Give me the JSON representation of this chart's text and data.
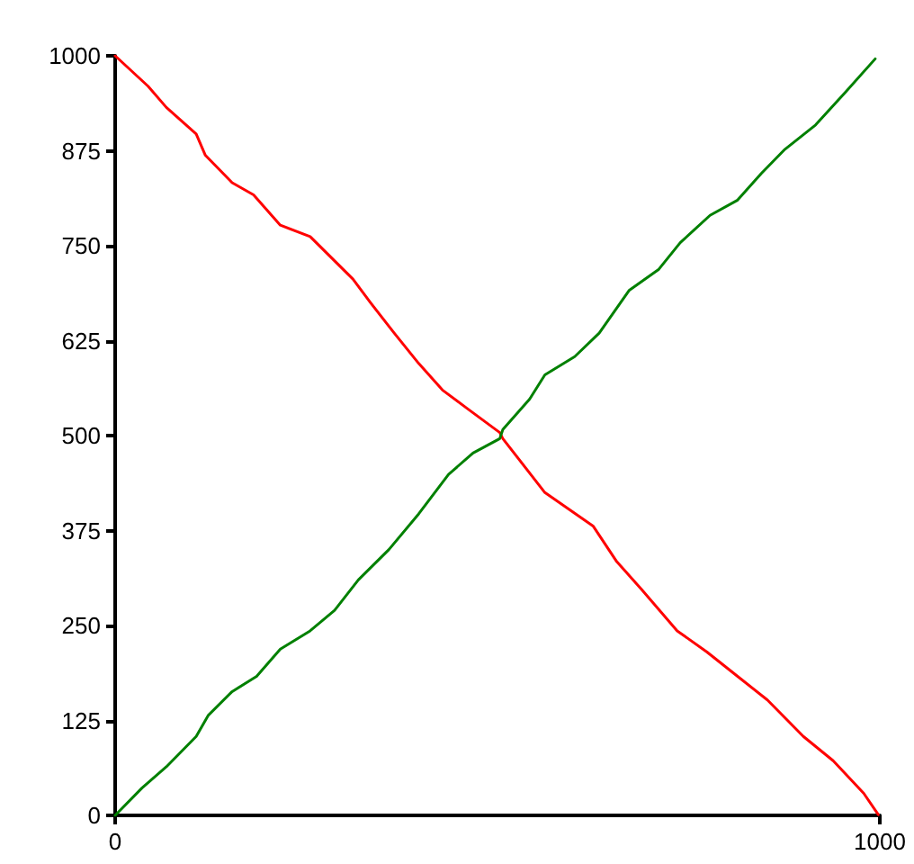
{
  "chart_data": {
    "type": "line",
    "xlim": [
      0,
      1000
    ],
    "xticks": [
      0,
      1000
    ],
    "ylim": [
      0,
      1000
    ],
    "yticks": [
      0,
      125,
      250,
      375,
      500,
      625,
      750,
      875,
      1000
    ],
    "grid": false,
    "marker": "none",
    "line_style": "solid",
    "series": [
      {
        "color": "#ff0000",
        "x": [
          0,
          43,
          67,
          106,
          118,
          153,
          181,
          216,
          255,
          287,
          311,
          334,
          365,
          397,
          428,
          460,
          503,
          507,
          562,
          625,
          656,
          688,
          735,
          774,
          814,
          853,
          900,
          939,
          979,
          998
        ],
        "values": [
          1000,
          960,
          932,
          897,
          869,
          833,
          817,
          777,
          762,
          730,
          706,
          675,
          635,
          595,
          560,
          536,
          504,
          496,
          425,
          381,
          334,
          298,
          243,
          215,
          183,
          152,
          104,
          72,
          29,
          1
        ]
      },
      {
        "color": "#008000",
        "x": [
          0,
          35,
          67,
          106,
          122,
          153,
          185,
          216,
          255,
          287,
          318,
          358,
          397,
          436,
          468,
          503,
          507,
          542,
          562,
          601,
          633,
          672,
          711,
          739,
          778,
          814,
          845,
          876,
          916,
          955,
          994
        ],
        "values": [
          0,
          36,
          64,
          104,
          132,
          163,
          183,
          219,
          243,
          270,
          310,
          350,
          397,
          449,
          477,
          496,
          508,
          548,
          580,
          604,
          635,
          691,
          719,
          754,
          790,
          810,
          845,
          877,
          909,
          952,
          996
        ]
      }
    ]
  }
}
